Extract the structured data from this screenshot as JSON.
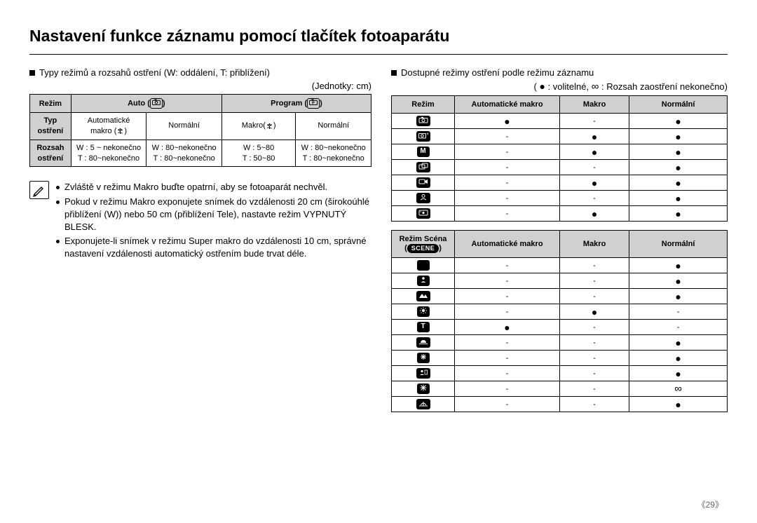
{
  "title": "Nastavení funkce záznamu pomocí tlačítek fotoaparátu",
  "left": {
    "heading": "Typy režimů a rozsahů ostření (W: oddálení, T: přiblížení)",
    "units": "(Jednotky: cm)",
    "table": {
      "h_mode": "Režim",
      "h_auto": "Auto",
      "h_program": "Program",
      "r1_label": "Typ\nostření",
      "r1_c1": "Automatické\nmakro",
      "r1_c2": "Normální",
      "r1_c3": "Makro",
      "r1_c4": "Normální",
      "r2_label": "Rozsah\nostření",
      "r2_c1": "W : 5 ~ nekonečno\nT : 80~nekonečno",
      "r2_c2": "W : 80~nekonečno\nT : 80~nekonečno",
      "r2_c3": "W : 5~80\nT : 50~80",
      "r2_c4": "W : 80~nekonečno\nT : 80~nekonečno"
    },
    "notes": [
      "Zvláště v režimu Makro buďte opatrní, aby se fotoaparát nechvěl.",
      "Pokud v režimu Makro exponujete snímek do vzdálenosti 20 cm (širokoúhlé přiblížení (W)) nebo 50 cm (přiblížení Tele), nastavte režim VYPNUTÝ BLESK.",
      "Exponujete-li snímek v režimu Super makro do vzdálenosti 10 cm, správné nastavení vzdálenosti automatický ostřením bude trvat déle."
    ]
  },
  "right": {
    "heading": "Dostupné režimy ostření podle režimu záznamu",
    "legend_label": "volitelné,",
    "legend_inf": "Rozsah zaostření nekonečno",
    "cols": {
      "mode": "Režim",
      "automacro": "Automatické makro",
      "macro": "Makro",
      "normal": "Normální"
    },
    "t2_rows": [
      {
        "automacro": "dot",
        "macro": "-",
        "normal": "dot"
      },
      {
        "automacro": "-",
        "macro": "dot",
        "normal": "dot"
      },
      {
        "automacro": "-",
        "macro": "dot",
        "normal": "dot"
      },
      {
        "automacro": "-",
        "macro": "-",
        "normal": "dot"
      },
      {
        "automacro": "-",
        "macro": "dot",
        "normal": "dot"
      },
      {
        "automacro": "-",
        "macro": "-",
        "normal": "dot"
      },
      {
        "automacro": "-",
        "macro": "dot",
        "normal": "dot"
      }
    ],
    "scene_label": "Režim Scéna",
    "scene_chip": "SCENE",
    "t3_rows": [
      {
        "automacro": "-",
        "macro": "-",
        "normal": "dot"
      },
      {
        "automacro": "-",
        "macro": "-",
        "normal": "dot"
      },
      {
        "automacro": "-",
        "macro": "-",
        "normal": "dot"
      },
      {
        "automacro": "-",
        "macro": "dot",
        "normal": "-"
      },
      {
        "automacro": "dot",
        "macro": "-",
        "normal": "-"
      },
      {
        "automacro": "-",
        "macro": "-",
        "normal": "dot"
      },
      {
        "automacro": "-",
        "macro": "-",
        "normal": "dot"
      },
      {
        "automacro": "-",
        "macro": "-",
        "normal": "dot"
      },
      {
        "automacro": "-",
        "macro": "-",
        "normal": "inf"
      },
      {
        "automacro": "-",
        "macro": "-",
        "normal": "dot"
      }
    ],
    "t2_icons": [
      "cam",
      "cam-plus",
      "M",
      "dual",
      "movie",
      "portrait",
      "smart"
    ],
    "t3_icons": [
      "night",
      "person",
      "mountain",
      "sun",
      "T",
      "sunset",
      "fireworks",
      "portrait2",
      "snowflake",
      "beach"
    ]
  },
  "page_number": "29",
  "colors": {
    "header_bg": "#d0d0d0",
    "border": "#000000",
    "text": "#000000"
  }
}
